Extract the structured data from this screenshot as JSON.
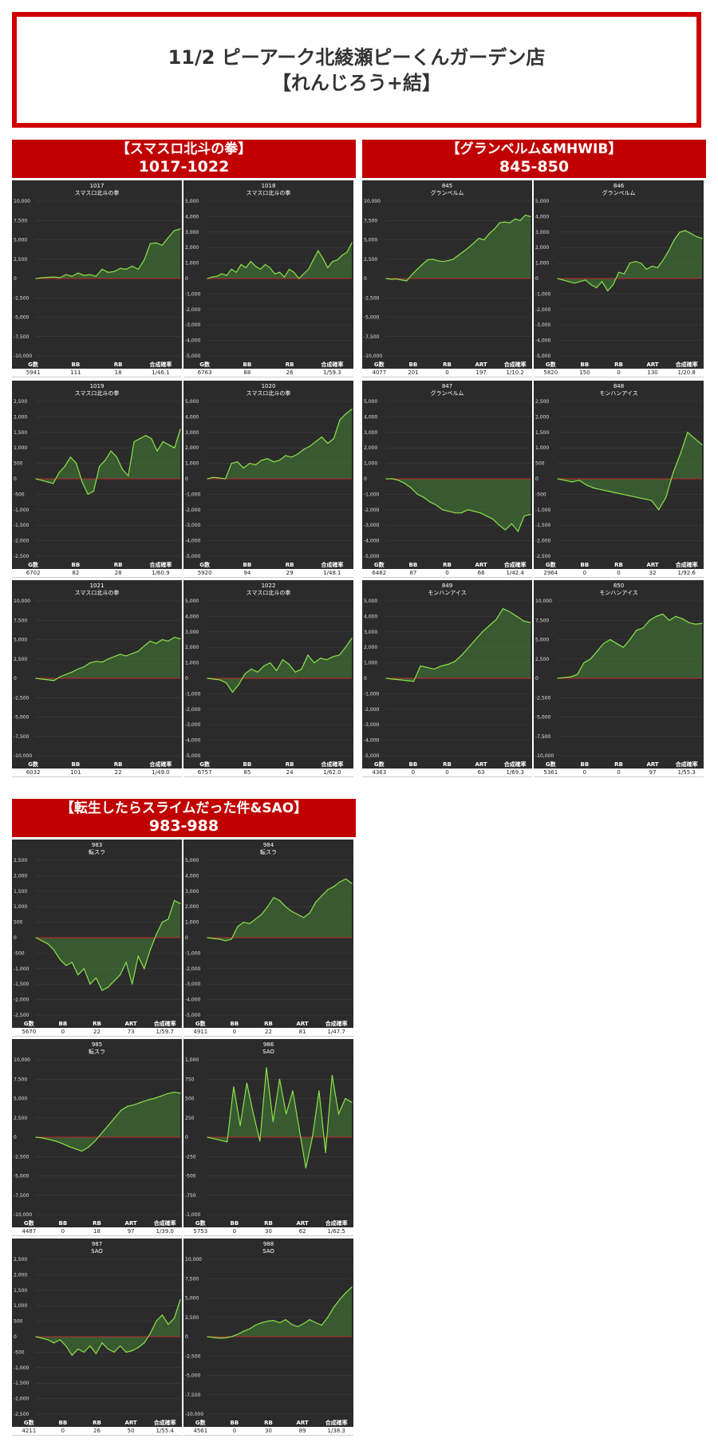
{
  "page": {
    "title_line1": "11/2  ピーアーク北綾瀬ピーくんガーデン店",
    "title_line2": "【れんじろう+結】"
  },
  "sections": [
    {
      "title": "【スマスロ北斗の拳】",
      "range": "1017-1022"
    },
    {
      "title": "【グランベルム&MHWIB】",
      "range": "845-850"
    },
    {
      "title": "【転生したらスライムだった件&SAO】",
      "range": "983-988"
    }
  ],
  "colors": {
    "line": "#8be24a",
    "fill": "#3f6b34",
    "zero": "#c0282d",
    "bg": "#2b2b2b",
    "header": "#c00000"
  },
  "chart_data": [
    {
      "type": "area",
      "machine": "1017",
      "name": "スマスロ北斗の拳",
      "ylim": [
        -10000,
        10000
      ],
      "ticks": [
        "10,000",
        "7,500",
        "5,000",
        "2,500",
        "0",
        "-2,500",
        "-5,000",
        "-7,500",
        "-10,000"
      ],
      "values": [
        0,
        100,
        150,
        200,
        100,
        500,
        300,
        700,
        400,
        500,
        300,
        1200,
        800,
        900,
        1300,
        1200,
        1600,
        1200,
        2400,
        4500,
        4600,
        4300,
        5300,
        6200,
        6400
      ],
      "stats": {
        "headers": [
          "G数",
          "BB",
          "RB",
          "合成確率"
        ],
        "values": [
          "5941",
          "111",
          "18",
          "1/46.1"
        ]
      }
    },
    {
      "type": "area",
      "machine": "1018",
      "name": "スマスロ北斗の拳",
      "ylim": [
        -5000,
        5000
      ],
      "ticks": [
        "5,000",
        "4,000",
        "3,000",
        "2,000",
        "1,000",
        "0",
        "-1,000",
        "-2,000",
        "-3,000",
        "-4,000",
        "-5,000"
      ],
      "values": [
        0,
        100,
        150,
        300,
        200,
        600,
        400,
        900,
        700,
        1100,
        800,
        600,
        900,
        700,
        300,
        400,
        100,
        600,
        400,
        0,
        300,
        600,
        1200,
        1800,
        1300,
        700,
        1100,
        1200,
        1500,
        1700,
        2300
      ],
      "stats": {
        "headers": [
          "G数",
          "BB",
          "RB",
          "合成確率"
        ],
        "values": [
          "6763",
          "88",
          "26",
          "1/59.3"
        ]
      }
    },
    {
      "type": "area",
      "machine": "845",
      "name": "グランベルム",
      "ylim": [
        -10000,
        10000
      ],
      "ticks": [
        "10,000",
        "7,500",
        "5,000",
        "2,500",
        "0",
        "-2,500",
        "-5,000",
        "-7,500",
        "-10,000"
      ],
      "values": [
        0,
        -100,
        -50,
        -200,
        -300,
        500,
        1200,
        1800,
        2400,
        2500,
        2300,
        2200,
        2300,
        2500,
        3000,
        3500,
        4000,
        4600,
        5200,
        5000,
        5800,
        6400,
        7200,
        7300,
        7200,
        7700,
        7500,
        8200,
        8000
      ],
      "stats": {
        "headers": [
          "G数",
          "BB",
          "RB",
          "ART",
          "合成確率"
        ],
        "values": [
          "4077",
          "201",
          "0",
          "197",
          "1/10.2"
        ]
      }
    },
    {
      "type": "area",
      "machine": "846",
      "name": "グランベルム",
      "ylim": [
        -5000,
        5000
      ],
      "ticks": [
        "5,000",
        "4,000",
        "3,000",
        "2,000",
        "1,000",
        "0",
        "-1,000",
        "-2,000",
        "-3,000",
        "-4,000",
        "-5,000"
      ],
      "values": [
        0,
        -100,
        -200,
        -300,
        -200,
        -100,
        -400,
        -600,
        -200,
        -800,
        -400,
        400,
        300,
        1000,
        1100,
        1000,
        600,
        800,
        700,
        1200,
        1800,
        2500,
        3000,
        3100,
        2900,
        2700,
        2600
      ],
      "stats": {
        "headers": [
          "G数",
          "BB",
          "RB",
          "ART",
          "合成確率"
        ],
        "values": [
          "5820",
          "150",
          "0",
          "130",
          "1/20.8"
        ]
      }
    },
    {
      "type": "area",
      "machine": "1019",
      "name": "スマスロ北斗の拳",
      "ylim": [
        -2500,
        2500
      ],
      "ticks": [
        "2,500",
        "2,000",
        "1,500",
        "1,000",
        "500",
        "0",
        "-500",
        "-1,000",
        "-1,500",
        "-2,000",
        "-2,500"
      ],
      "values": [
        0,
        -50,
        -100,
        -150,
        200,
        400,
        700,
        500,
        -100,
        -500,
        -400,
        400,
        600,
        900,
        700,
        300,
        100,
        1200,
        1300,
        1400,
        1300,
        900,
        1200,
        1100,
        1000,
        1600
      ],
      "stats": {
        "headers": [
          "G数",
          "BB",
          "RB",
          "合成確率"
        ],
        "values": [
          "6702",
          "82",
          "28",
          "1/60.9"
        ]
      }
    },
    {
      "type": "area",
      "machine": "1020",
      "name": "スマスロ北斗の拳",
      "ylim": [
        -5000,
        5000
      ],
      "ticks": [
        "5,000",
        "4,000",
        "3,000",
        "2,000",
        "1,000",
        "0",
        "-1,000",
        "-2,000",
        "-3,000",
        "-4,000",
        "-5,000"
      ],
      "values": [
        0,
        100,
        50,
        0,
        1000,
        1100,
        700,
        1000,
        900,
        1200,
        1300,
        1100,
        1200,
        1500,
        1400,
        1600,
        1900,
        2100,
        2400,
        2700,
        2300,
        2600,
        3800,
        4200,
        4500
      ],
      "stats": {
        "headers": [
          "G数",
          "BB",
          "RB",
          "合成確率"
        ],
        "values": [
          "5920",
          "94",
          "29",
          "1/48.1"
        ]
      }
    },
    {
      "type": "area",
      "machine": "847",
      "name": "グランベルム",
      "ylim": [
        -5000,
        5000
      ],
      "ticks": [
        "5,000",
        "4,000",
        "3,000",
        "2,000",
        "1,000",
        "0",
        "-1,000",
        "-2,000",
        "-3,000",
        "-4,000",
        "-5,000"
      ],
      "values": [
        0,
        0,
        -100,
        -300,
        -600,
        -1000,
        -1200,
        -1500,
        -1700,
        -2000,
        -2100,
        -2200,
        -2200,
        -2000,
        -2100,
        -2200,
        -2400,
        -2600,
        -3000,
        -3300,
        -2900,
        -3400,
        -2400,
        -2300
      ],
      "stats": {
        "headers": [
          "G数",
          "BB",
          "RB",
          "ART",
          "合成確率"
        ],
        "values": [
          "6482",
          "87",
          "0",
          "66",
          "1/42.4"
        ]
      }
    },
    {
      "type": "area",
      "machine": "848",
      "name": "モンハンアイス",
      "ylim": [
        -2500,
        2500
      ],
      "ticks": [
        "2,500",
        "2,000",
        "1,500",
        "1,000",
        "500",
        "0",
        "-500",
        "-1,000",
        "-1,500",
        "-2,000",
        "-2,500"
      ],
      "values": [
        0,
        -50,
        -100,
        -50,
        -200,
        -300,
        -350,
        -400,
        -450,
        -500,
        -550,
        -600,
        -650,
        -700,
        -1000,
        -600,
        200,
        800,
        1500,
        1300,
        1100
      ],
      "stats": {
        "headers": [
          "G数",
          "BB",
          "RB",
          "ART",
          "合成確率"
        ],
        "values": [
          "2964",
          "0",
          "0",
          "32",
          "1/92.6"
        ]
      }
    },
    {
      "type": "area",
      "machine": "1021",
      "name": "スマスロ北斗の拳",
      "ylim": [
        -10000,
        10000
      ],
      "ticks": [
        "10,000",
        "7,500",
        "5,000",
        "2,500",
        "0",
        "-2,500",
        "-5,000",
        "-7,500",
        "-10,000"
      ],
      "values": [
        0,
        -100,
        -200,
        -300,
        200,
        500,
        800,
        1200,
        1500,
        2000,
        2200,
        2100,
        2500,
        2800,
        3100,
        2900,
        3200,
        3500,
        4200,
        4800,
        4500,
        5000,
        4800,
        5300,
        5100
      ],
      "stats": {
        "headers": [
          "G数",
          "BB",
          "RB",
          "合成確率"
        ],
        "values": [
          "6032",
          "101",
          "22",
          "1/49.0"
        ]
      }
    },
    {
      "type": "area",
      "machine": "1022",
      "name": "スマスロ北斗の拳",
      "ylim": [
        -5000,
        5000
      ],
      "ticks": [
        "5,000",
        "4,000",
        "3,000",
        "2,000",
        "1,000",
        "0",
        "-1,000",
        "-2,000",
        "-3,000",
        "-4,000",
        "-5,000"
      ],
      "values": [
        0,
        -50,
        -100,
        -300,
        -900,
        -400,
        300,
        600,
        400,
        800,
        1000,
        500,
        1200,
        900,
        400,
        600,
        1500,
        1000,
        1300,
        1200,
        1400,
        1500,
        2000,
        2600
      ],
      "stats": {
        "headers": [
          "G数",
          "BB",
          "RB",
          "合成確率"
        ],
        "values": [
          "6757",
          "85",
          "24",
          "1/62.0"
        ]
      }
    },
    {
      "type": "area",
      "machine": "849",
      "name": "モンハンアイス",
      "ylim": [
        -5000,
        5000
      ],
      "ticks": [
        "5,000",
        "4,000",
        "3,000",
        "2,000",
        "1,000",
        "0",
        "-1,000",
        "-2,000",
        "-3,000",
        "-4,000",
        "-5,000"
      ],
      "values": [
        0,
        -50,
        -100,
        -150,
        -200,
        800,
        700,
        600,
        800,
        900,
        1100,
        1500,
        2000,
        2500,
        3000,
        3400,
        3800,
        4500,
        4300,
        4000,
        3700,
        3600
      ],
      "stats": {
        "headers": [
          "G数",
          "BB",
          "RB",
          "ART",
          "合成確率"
        ],
        "values": [
          "4363",
          "0",
          "0",
          "63",
          "1/69.3"
        ]
      }
    },
    {
      "type": "area",
      "machine": "850",
      "name": "モンハンアイス",
      "ylim": [
        -10000,
        10000
      ],
      "ticks": [
        "10,000",
        "7,500",
        "5,000",
        "2,500",
        "0",
        "-2,500",
        "-5,000",
        "-7,500",
        "-10,000"
      ],
      "values": [
        0,
        100,
        200,
        500,
        2000,
        2500,
        3500,
        4500,
        5000,
        4500,
        4000,
        5000,
        6200,
        6500,
        7500,
        8000,
        8300,
        7500,
        8000,
        7700,
        7200,
        7000,
        7100
      ],
      "stats": {
        "headers": [
          "G数",
          "BB",
          "RB",
          "ART",
          "合成確率"
        ],
        "values": [
          "5361",
          "0",
          "0",
          "97",
          "1/55.3"
        ]
      }
    },
    {
      "type": "area",
      "machine": "983",
      "name": "転スラ",
      "ylim": [
        -2500,
        2500
      ],
      "ticks": [
        "2,500",
        "2,000",
        "1,500",
        "1,000",
        "500",
        "0",
        "-500",
        "-1,000",
        "-1,500",
        "-2,000",
        "-2,500"
      ],
      "values": [
        0,
        -100,
        -200,
        -400,
        -700,
        -900,
        -800,
        -1200,
        -1000,
        -1500,
        -1300,
        -1700,
        -1600,
        -1400,
        -1200,
        -800,
        -1500,
        -600,
        -1000,
        -400,
        100,
        500,
        600,
        1200,
        1100
      ],
      "stats": {
        "headers": [
          "G数",
          "BB",
          "RB",
          "ART",
          "合成確率"
        ],
        "values": [
          "5670",
          "0",
          "22",
          "73",
          "1/59.7"
        ]
      }
    },
    {
      "type": "area",
      "machine": "984",
      "name": "転スラ",
      "ylim": [
        -5000,
        5000
      ],
      "ticks": [
        "5,000",
        "4,000",
        "3,000",
        "2,000",
        "1,000",
        "0",
        "-1,000",
        "-2,000",
        "-3,000",
        "-4,000",
        "-5,000"
      ],
      "values": [
        0,
        -50,
        -100,
        -200,
        -100,
        700,
        1000,
        900,
        1200,
        1500,
        2000,
        2600,
        2400,
        2000,
        1700,
        1500,
        1300,
        1600,
        2300,
        2700,
        3100,
        3300,
        3600,
        3800,
        3500
      ],
      "stats": {
        "headers": [
          "G数",
          "BB",
          "RB",
          "ART",
          "合成確率"
        ],
        "values": [
          "4911",
          "0",
          "22",
          "81",
          "1/47.7"
        ]
      }
    },
    {
      "type": "area",
      "machine": "985",
      "name": "転スラ",
      "ylim": [
        -10000,
        10000
      ],
      "ticks": [
        "10,000",
        "7,500",
        "5,000",
        "2,500",
        "0",
        "-2,500",
        "-5,000",
        "-7,500",
        "-10,000"
      ],
      "values": [
        0,
        -100,
        -300,
        -500,
        -800,
        -1200,
        -1500,
        -1800,
        -1300,
        -500,
        500,
        1500,
        2500,
        3500,
        4000,
        4200,
        4500,
        4800,
        5000,
        5300,
        5600,
        5800,
        5700
      ],
      "stats": {
        "headers": [
          "G数",
          "BB",
          "RB",
          "ART",
          "合成確率"
        ],
        "values": [
          "4487",
          "0",
          "18",
          "97",
          "1/39.0"
        ]
      }
    },
    {
      "type": "area",
      "machine": "986",
      "name": "SAO",
      "ylim": [
        -1000,
        1000
      ],
      "ticks": [
        "1,000",
        "750",
        "500",
        "250",
        "0",
        "-250",
        "-500",
        "-750",
        "-1,000"
      ],
      "values": [
        0,
        -20,
        -40,
        -60,
        650,
        150,
        700,
        300,
        -50,
        900,
        200,
        750,
        300,
        600,
        100,
        -400,
        0,
        600,
        -200,
        800,
        300,
        500,
        450
      ],
      "stats": {
        "headers": [
          "G数",
          "BB",
          "RB",
          "ART",
          "合成確率"
        ],
        "values": [
          "5753",
          "0",
          "30",
          "62",
          "1/62.5"
        ]
      }
    },
    {
      "type": "area",
      "machine": "987",
      "name": "SAO",
      "ylim": [
        -2500,
        2500
      ],
      "ticks": [
        "2,500",
        "2,000",
        "1,500",
        "1,000",
        "500",
        "0",
        "-500",
        "-1,000",
        "-1,500",
        "-2,000",
        "-2,500"
      ],
      "values": [
        0,
        -50,
        -100,
        -200,
        -100,
        -300,
        -600,
        -400,
        -500,
        -300,
        -550,
        -200,
        -400,
        -500,
        -300,
        -500,
        -450,
        -350,
        -200,
        100,
        500,
        700,
        400,
        600,
        1200
      ],
      "stats": {
        "headers": [
          "G数",
          "BB",
          "RB",
          "ART",
          "合成確率"
        ],
        "values": [
          "4211",
          "0",
          "26",
          "50",
          "1/55.4"
        ]
      }
    },
    {
      "type": "area",
      "machine": "988",
      "name": "SAO",
      "ylim": [
        -10000,
        10000
      ],
      "ticks": [
        "10,000",
        "7,500",
        "5,000",
        "2,500",
        "0",
        "-2,500",
        "-5,000",
        "-7,500",
        "-10,000"
      ],
      "values": [
        0,
        -100,
        -200,
        -150,
        0,
        300,
        700,
        1000,
        1500,
        1800,
        2000,
        2100,
        1800,
        2200,
        1600,
        1300,
        1700,
        2200,
        1800,
        1500,
        2500,
        3800,
        4800,
        5700,
        6400
      ],
      "stats": {
        "headers": [
          "G数",
          "BB",
          "RB",
          "ART",
          "合成確率"
        ],
        "values": [
          "4561",
          "0",
          "30",
          "89",
          "1/38.3"
        ]
      }
    }
  ]
}
